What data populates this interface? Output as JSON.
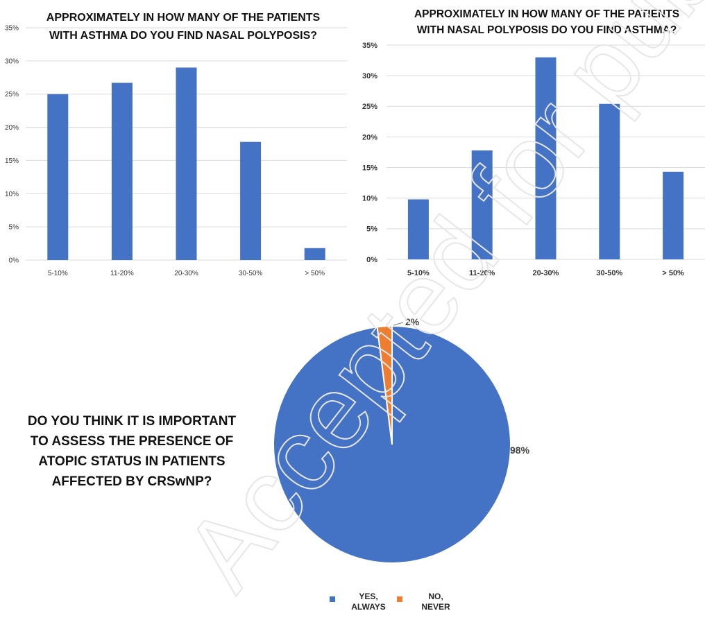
{
  "chart_data": [
    {
      "type": "bar",
      "title_lines": [
        "APPROXIMATELY IN HOW MANY OF THE PATIENTS",
        "WITH ASTHMA DO YOU FIND NASAL POLYPOSIS?"
      ],
      "categories": [
        "5-10%",
        "11-20%",
        "20-30%",
        "30-50%",
        "> 50%"
      ],
      "values": [
        25,
        26.7,
        29,
        17.8,
        1.8
      ],
      "yticks": [
        "0%",
        "5%",
        "10%",
        "15%",
        "20%",
        "25%",
        "30%",
        "35%"
      ],
      "ylim": [
        0,
        35
      ],
      "grid": true,
      "color": "#4472C4"
    },
    {
      "type": "bar",
      "title_lines": [
        "APPROXIMATELY IN HOW MANY OF THE PATIENTS",
        "WITH NASAL POLYPOSIS DO YOU FIND ASTHMA?"
      ],
      "categories": [
        "5-10%",
        "11-20%",
        "20-30%",
        "30-50%",
        "> 50%"
      ],
      "values": [
        9.8,
        17.8,
        33,
        25.4,
        14.3
      ],
      "yticks": [
        "0%",
        "5%",
        "10%",
        "15%",
        "20%",
        "25%",
        "30%",
        "35%"
      ],
      "ylim": [
        0,
        35
      ],
      "grid": true,
      "color": "#4472C4"
    },
    {
      "type": "pie",
      "title_lines": [
        "DO YOU THINK IT IS IMPORTANT",
        "TO ASSESS THE PRESENCE OF",
        "ATOPIC STATUS IN PATIENTS",
        "AFFECTED BY CRSwNP?"
      ],
      "slices": [
        {
          "label_lines": [
            "YES,",
            "ALWAYS"
          ],
          "value": 98,
          "data_label": "98%",
          "color": "#4472C4"
        },
        {
          "label_lines": [
            "NO,",
            "NEVER"
          ],
          "value": 2,
          "data_label": "2%",
          "color": "#ED7D31"
        }
      ],
      "legend": "bottom"
    }
  ],
  "watermark": "Accepted for publication"
}
